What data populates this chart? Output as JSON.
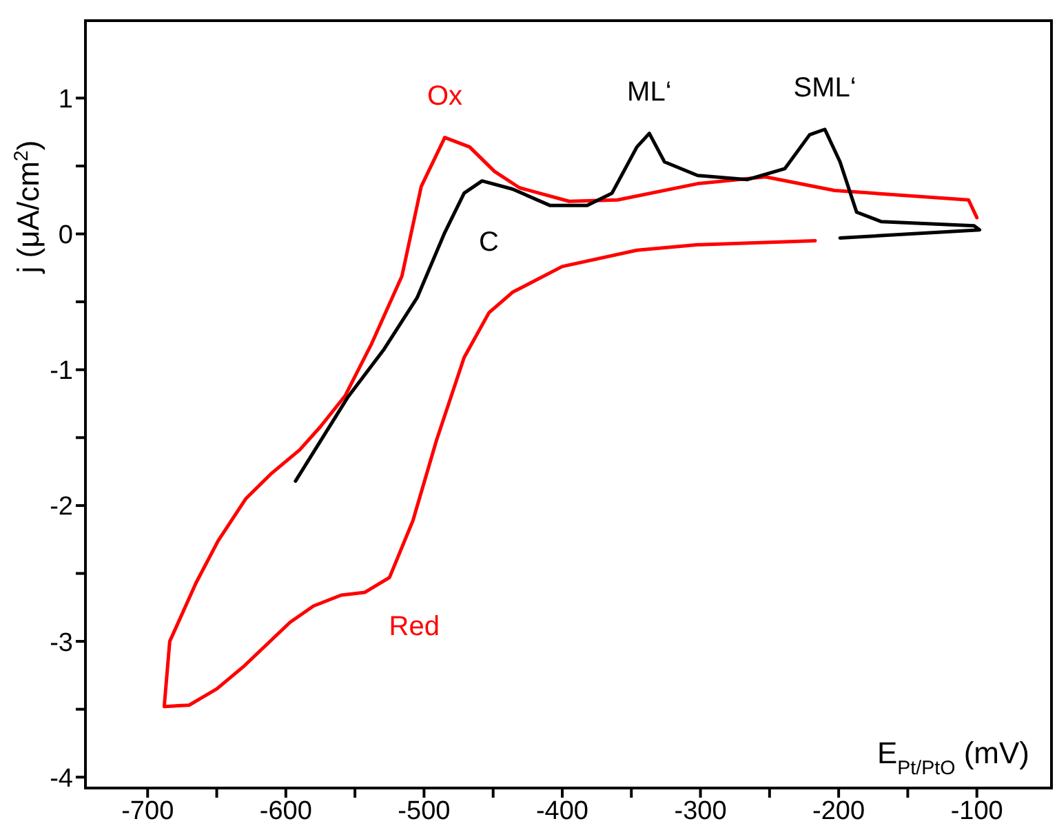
{
  "chart_data": {
    "type": "line",
    "xlabel": "E$_{Pt/PtO}$ (mV)",
    "ylabel": "j (μA/cm$^{2}$)",
    "xlim": [
      -745,
      -46
    ],
    "ylim": [
      -4.08,
      1.57
    ],
    "xticks": [
      -700,
      {
        "value": -650,
        "label": null
      },
      -600,
      {
        "value": -550,
        "label": null
      },
      -500,
      {
        "value": -450,
        "label": null
      },
      -400,
      {
        "value": -350,
        "label": null
      },
      -300,
      {
        "value": -250,
        "label": null
      },
      -200,
      {
        "value": -150,
        "label": null
      },
      -100
    ],
    "yticks": [
      -4,
      {
        "value": -3.5,
        "label": null
      },
      -3,
      {
        "value": -2.5,
        "label": null
      },
      -2,
      {
        "value": -1.5,
        "label": null
      },
      -1,
      {
        "value": -0.5,
        "label": null
      },
      0,
      {
        "value": 0.5,
        "label": null
      },
      1
    ],
    "series": [
      {
        "color": "#ff0000",
        "x": [
          -217,
          -302,
          -346,
          -400,
          -436,
          -453,
          -471,
          -491,
          -508,
          -525,
          -543,
          -560,
          -580,
          -597,
          -630,
          -650,
          -670,
          -688,
          -684,
          -665,
          -649,
          -629,
          -610,
          -590,
          -575,
          -557,
          -538,
          -516,
          -502,
          -485,
          -467,
          -449,
          -431,
          -395,
          -360,
          -302,
          -253,
          -203,
          -106,
          -100
        ],
        "values": [
          -0.05,
          -0.08,
          -0.12,
          -0.24,
          -0.43,
          -0.58,
          -0.91,
          -1.52,
          -2.11,
          -2.53,
          -2.64,
          -2.66,
          -2.74,
          -2.86,
          -3.18,
          -3.35,
          -3.47,
          -3.48,
          -3.0,
          -2.57,
          -2.26,
          -1.95,
          -1.76,
          -1.59,
          -1.42,
          -1.19,
          -0.81,
          -0.31,
          0.35,
          0.71,
          0.64,
          0.46,
          0.34,
          0.24,
          0.25,
          0.37,
          0.42,
          0.32,
          0.25,
          0.12
        ]
      },
      {
        "color": "#000000",
        "x": [
          -593,
          -555,
          -529,
          -505,
          -485,
          -471,
          -458,
          -436,
          -409,
          -382,
          -364,
          -346,
          -337,
          -326,
          -302,
          -266,
          -239,
          -221,
          -210,
          -199,
          -187,
          -169,
          -102,
          -98,
          -199
        ],
        "values": [
          -1.82,
          -1.2,
          -0.85,
          -0.47,
          0.01,
          0.3,
          0.39,
          0.33,
          0.21,
          0.21,
          0.3,
          0.64,
          0.74,
          0.53,
          0.43,
          0.4,
          0.48,
          0.73,
          0.77,
          0.53,
          0.16,
          0.09,
          0.06,
          0.03,
          -0.03
        ]
      }
    ],
    "annotations": [
      {
        "text": "Ox",
        "x": -485,
        "y": 0.71
      },
      {
        "text": "ML‘",
        "x": -337,
        "y": 0.74
      },
      {
        "text": "SML‘",
        "x": -210,
        "y": 0.77
      },
      {
        "text": "C",
        "x": -471,
        "y": 0.3
      },
      {
        "text": "Red",
        "x": -525,
        "y": -2.53
      }
    ]
  }
}
